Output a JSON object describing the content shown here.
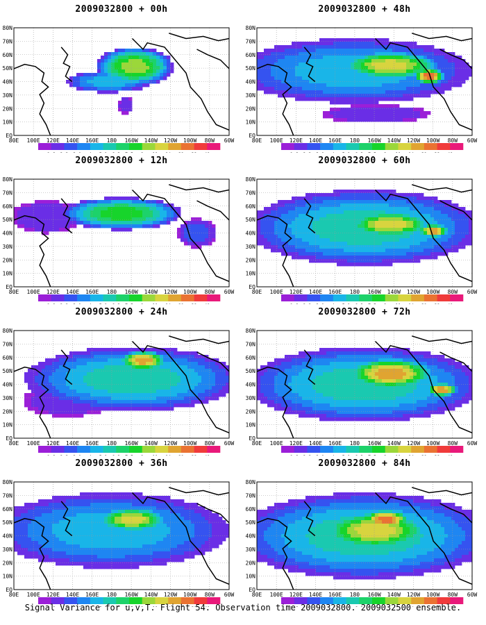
{
  "lat_labels": [
    "80N",
    "70N",
    "60N",
    "50N",
    "40N",
    "30N",
    "20N",
    "10N",
    "EQ"
  ],
  "lon_labels": [
    "80E",
    "100E",
    "120E",
    "140E",
    "160E",
    "180",
    "160W",
    "140W",
    "120W",
    "100W",
    "80W",
    "60W"
  ],
  "legend_values": [
    "1.6",
    "2.2",
    "3.1",
    "4",
    "5.1",
    "6.3",
    "7.5",
    "9",
    "11",
    "14",
    "21",
    "29",
    "40"
  ],
  "colors": {
    "legend": [
      "#9b1fd8",
      "#6a2ee6",
      "#3553f0",
      "#1e86f2",
      "#19b5e8",
      "#1ac9b0",
      "#1dd26a",
      "#17d42b",
      "#9bd73a",
      "#d8d43f",
      "#e0a431",
      "#ea7232",
      "#f03b3b",
      "#e9197a"
    ],
    "land": "#000000",
    "grid": "#9a9a9a"
  },
  "panels": [
    {
      "title": "2009032800 + 00h"
    },
    {
      "title": "2009032800 + 48h"
    },
    {
      "title": "2009032800 + 12h"
    },
    {
      "title": "2009032800 + 60h"
    },
    {
      "title": "2009032800 + 24h"
    },
    {
      "title": "2009032800 + 72h"
    },
    {
      "title": "2009032800 + 36h"
    },
    {
      "title": "2009032800 + 84h"
    }
  ],
  "footer": "Signal Variance for u,v,T. Flight 54. Observation time 2009032800. 2009032500 ensemble."
}
